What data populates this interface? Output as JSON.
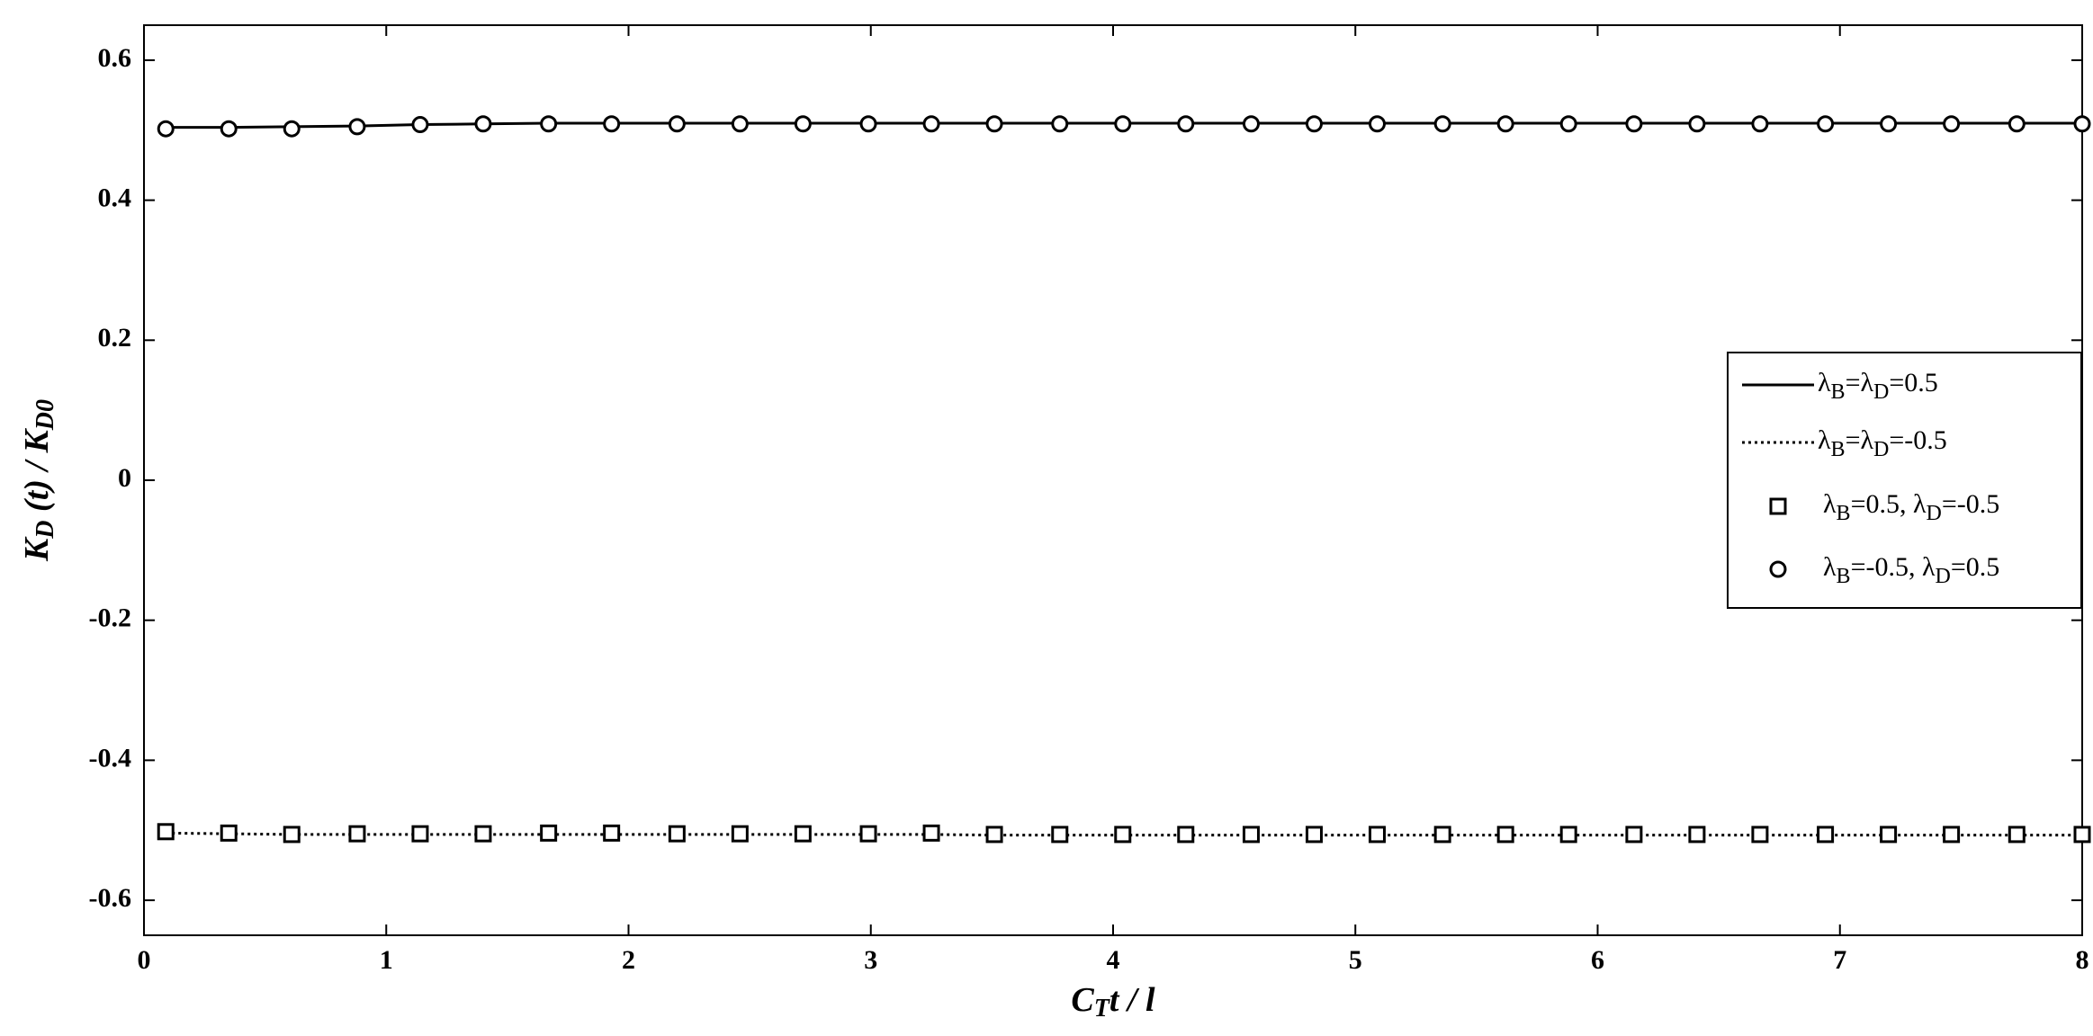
{
  "chart_data": {
    "type": "line",
    "xlabel": "CTt / l",
    "ylabel": "KD (t) / KD0",
    "xlim": [
      0,
      8
    ],
    "ylim": [
      -0.65,
      0.65
    ],
    "xticks": [
      0,
      1,
      2,
      3,
      4,
      5,
      6,
      7,
      8
    ],
    "yticks": [
      -0.6,
      -0.4,
      -0.2,
      0,
      0.2,
      0.4,
      0.6
    ],
    "grid": false,
    "legend": "right",
    "x": [
      0.09,
      0.35,
      0.61,
      0.88,
      1.14,
      1.4,
      1.67,
      1.93,
      2.2,
      2.46,
      2.72,
      2.99,
      3.25,
      3.51,
      3.78,
      4.04,
      4.3,
      4.57,
      4.83,
      5.09,
      5.36,
      5.62,
      5.88,
      6.15,
      6.41,
      6.67,
      6.94,
      7.2,
      7.46,
      7.73,
      8.0
    ],
    "series": [
      {
        "name": "λB=λD=0.5",
        "color": "#000000",
        "linestyle": "solid",
        "marker": "none",
        "values": [
          0.504,
          0.504,
          0.505,
          0.506,
          0.508,
          0.509,
          0.51,
          0.51,
          0.51,
          0.51,
          0.51,
          0.51,
          0.51,
          0.51,
          0.51,
          0.51,
          0.51,
          0.51,
          0.51,
          0.51,
          0.51,
          0.51,
          0.51,
          0.51,
          0.51,
          0.51,
          0.51,
          0.51,
          0.51,
          0.51,
          0.51
        ]
      },
      {
        "name": "λB=λD=-0.5",
        "color": "#000000",
        "linestyle": "dotted",
        "marker": "none",
        "values": [
          -0.504,
          -0.505,
          -0.506,
          -0.506,
          -0.506,
          -0.506,
          -0.506,
          -0.506,
          -0.506,
          -0.506,
          -0.506,
          -0.506,
          -0.506,
          -0.507,
          -0.507,
          -0.507,
          -0.507,
          -0.507,
          -0.507,
          -0.507,
          -0.507,
          -0.507,
          -0.507,
          -0.507,
          -0.507,
          -0.507,
          -0.507,
          -0.507,
          -0.507,
          -0.507,
          -0.507
        ]
      },
      {
        "name": "λB=0.5,   λD=-0.5",
        "color": "#000000",
        "linestyle": "none",
        "marker": "square",
        "values": [
          -0.502,
          -0.504,
          -0.506,
          -0.505,
          -0.505,
          -0.505,
          -0.504,
          -0.504,
          -0.505,
          -0.505,
          -0.505,
          -0.505,
          -0.504,
          -0.506,
          -0.506,
          -0.506,
          -0.506,
          -0.506,
          -0.506,
          -0.506,
          -0.506,
          -0.506,
          -0.506,
          -0.506,
          -0.506,
          -0.506,
          -0.506,
          -0.506,
          -0.506,
          -0.506,
          -0.506
        ]
      },
      {
        "name": "λB=-0.5,   λD=0.5",
        "color": "#000000",
        "linestyle": "none",
        "marker": "circle",
        "values": [
          0.502,
          0.502,
          0.502,
          0.505,
          0.508,
          0.509,
          0.509,
          0.509,
          0.509,
          0.509,
          0.509,
          0.509,
          0.509,
          0.509,
          0.509,
          0.509,
          0.509,
          0.509,
          0.509,
          0.509,
          0.509,
          0.509,
          0.509,
          0.509,
          0.509,
          0.509,
          0.509,
          0.509,
          0.509,
          0.509,
          0.509
        ]
      }
    ]
  }
}
